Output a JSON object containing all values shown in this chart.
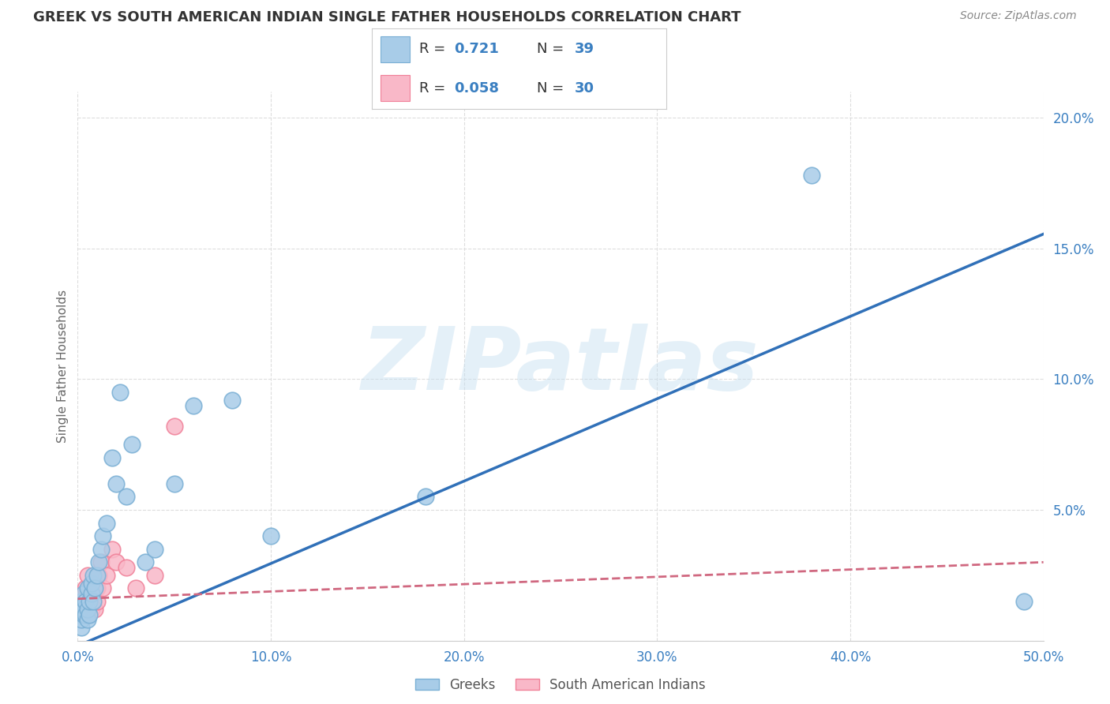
{
  "title": "GREEK VS SOUTH AMERICAN INDIAN SINGLE FATHER HOUSEHOLDS CORRELATION CHART",
  "source": "Source: ZipAtlas.com",
  "ylabel": "Single Father Households",
  "xlim": [
    0.0,
    0.5
  ],
  "ylim": [
    0.0,
    0.21
  ],
  "xticks": [
    0.0,
    0.1,
    0.2,
    0.3,
    0.4,
    0.5
  ],
  "yticks": [
    0.0,
    0.05,
    0.1,
    0.15,
    0.2
  ],
  "xticklabels": [
    "0.0%",
    "10.0%",
    "20.0%",
    "30.0%",
    "40.0%",
    "50.0%"
  ],
  "yticklabels": [
    "",
    "5.0%",
    "10.0%",
    "15.0%",
    "20.0%"
  ],
  "greek_color": "#a8cce8",
  "greek_edge_color": "#7aafd4",
  "sam_indian_color": "#f9b8c8",
  "sam_indian_edge_color": "#f08098",
  "greek_R": "0.721",
  "greek_N": "39",
  "sam_indian_R": "0.058",
  "sam_indian_N": "30",
  "legend_value_color": "#3a7fc1",
  "watermark": "ZIPatlas",
  "greek_line_color": "#3070b8",
  "sam_line_color": "#d06880",
  "greek_scatter_x": [
    0.001,
    0.001,
    0.002,
    0.002,
    0.002,
    0.003,
    0.003,
    0.003,
    0.004,
    0.004,
    0.005,
    0.005,
    0.005,
    0.006,
    0.006,
    0.007,
    0.007,
    0.008,
    0.008,
    0.009,
    0.01,
    0.011,
    0.012,
    0.013,
    0.015,
    0.018,
    0.02,
    0.022,
    0.025,
    0.028,
    0.035,
    0.04,
    0.05,
    0.06,
    0.08,
    0.1,
    0.18,
    0.38,
    0.49
  ],
  "greek_scatter_y": [
    0.01,
    0.012,
    0.005,
    0.008,
    0.015,
    0.01,
    0.012,
    0.018,
    0.01,
    0.015,
    0.008,
    0.012,
    0.02,
    0.01,
    0.015,
    0.018,
    0.022,
    0.015,
    0.025,
    0.02,
    0.025,
    0.03,
    0.035,
    0.04,
    0.045,
    0.07,
    0.06,
    0.095,
    0.055,
    0.075,
    0.03,
    0.035,
    0.06,
    0.09,
    0.092,
    0.04,
    0.055,
    0.178,
    0.015
  ],
  "sam_scatter_x": [
    0.001,
    0.001,
    0.002,
    0.002,
    0.003,
    0.003,
    0.004,
    0.004,
    0.005,
    0.005,
    0.005,
    0.006,
    0.006,
    0.007,
    0.007,
    0.008,
    0.008,
    0.009,
    0.01,
    0.01,
    0.011,
    0.012,
    0.013,
    0.015,
    0.018,
    0.02,
    0.025,
    0.03,
    0.04,
    0.05
  ],
  "sam_scatter_y": [
    0.01,
    0.015,
    0.012,
    0.018,
    0.01,
    0.015,
    0.012,
    0.02,
    0.01,
    0.015,
    0.025,
    0.02,
    0.015,
    0.012,
    0.018,
    0.015,
    0.02,
    0.012,
    0.015,
    0.02,
    0.025,
    0.03,
    0.02,
    0.025,
    0.035,
    0.03,
    0.028,
    0.02,
    0.025,
    0.082
  ],
  "background_color": "#ffffff",
  "grid_color": "#dddddd",
  "title_color": "#333333",
  "axis_label_color": "#666666",
  "tick_color": "#3a7fc1",
  "greek_line_slope": 0.315,
  "greek_line_intercept": -0.002,
  "sam_line_slope": 0.028,
  "sam_line_intercept": 0.016
}
